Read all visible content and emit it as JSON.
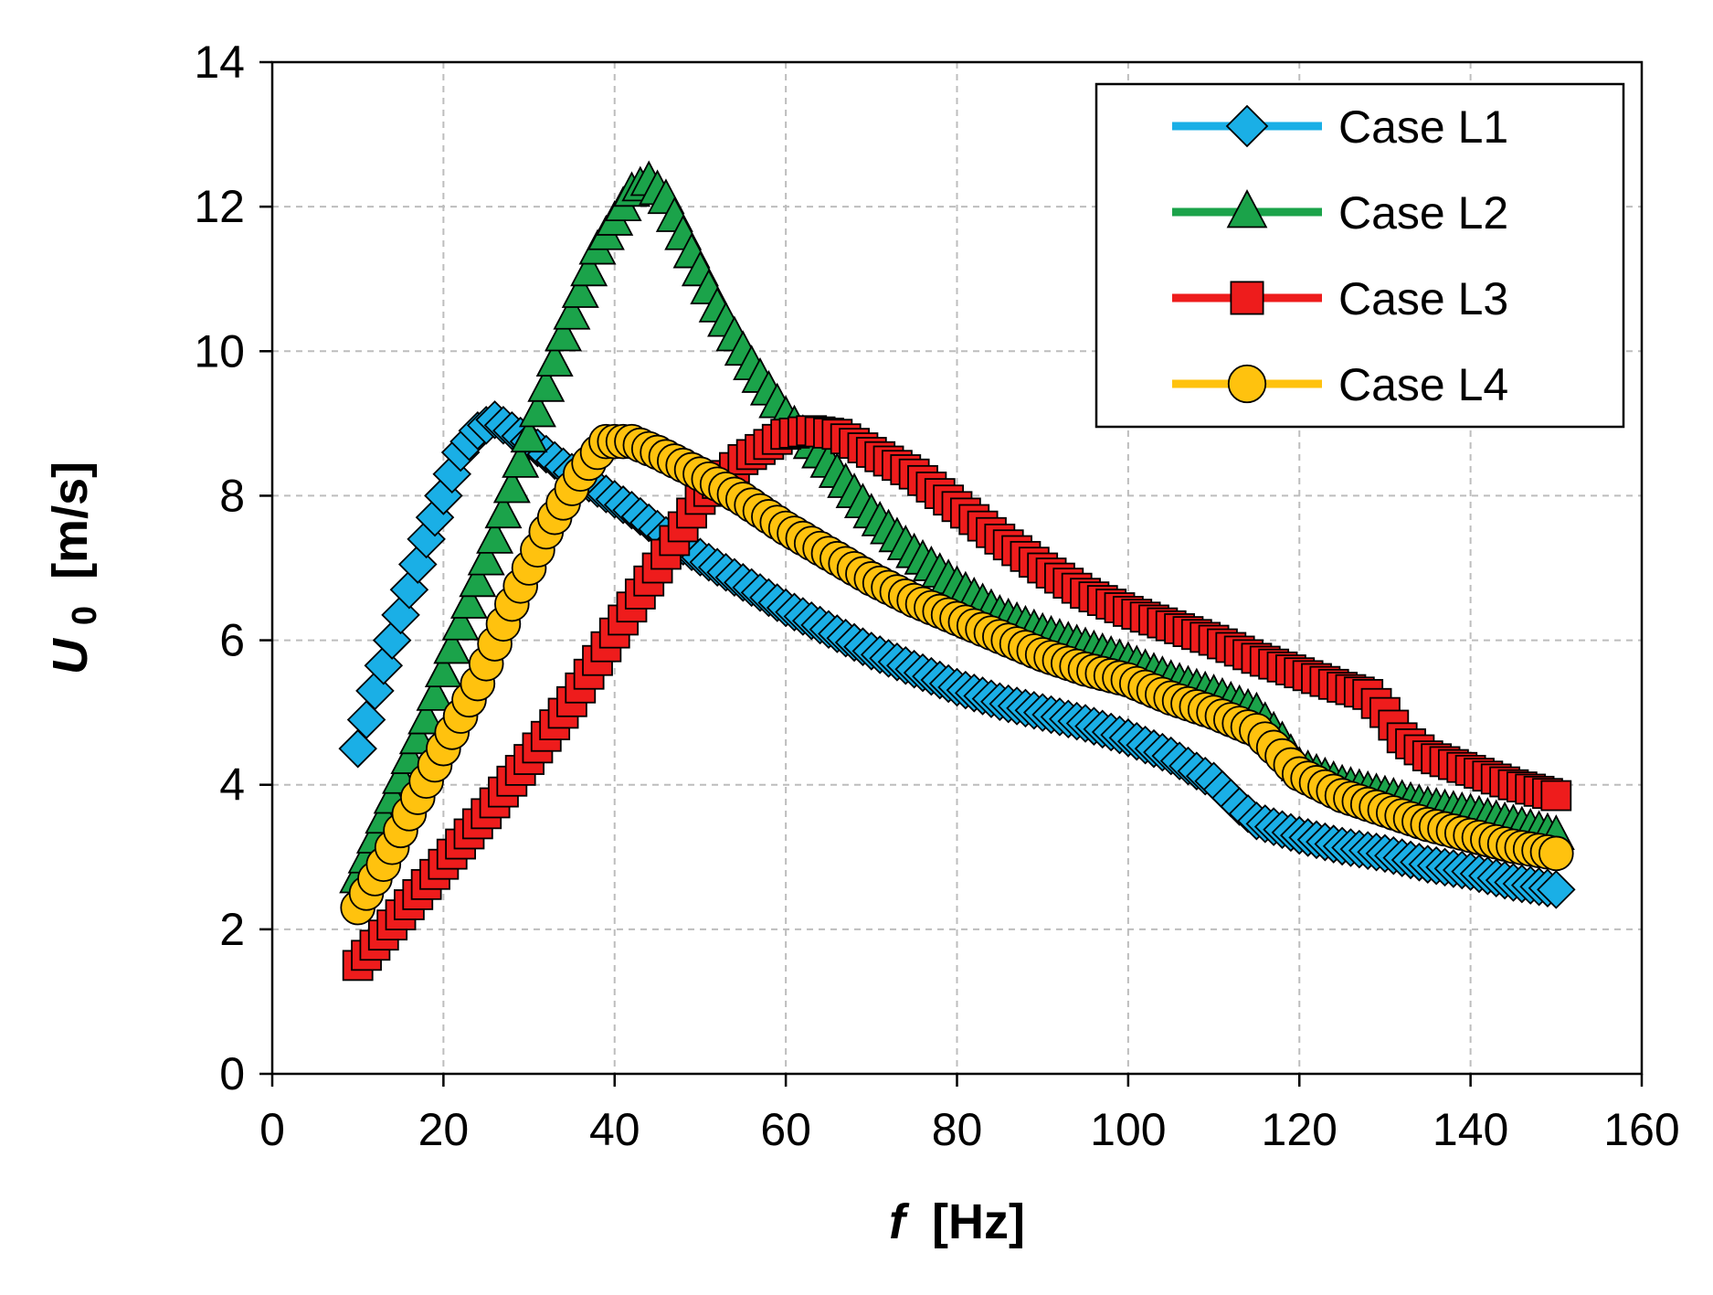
{
  "chart_data": {
    "type": "line",
    "title": "",
    "xlabel_symbol": "f",
    "xlabel_unit": "[Hz]",
    "ylabel_symbol": "U",
    "ylabel_subscript": "0",
    "ylabel_unit": "[m/s]",
    "xlim": [
      0,
      160
    ],
    "ylim": [
      0,
      14
    ],
    "xticks": [
      0,
      20,
      40,
      60,
      80,
      100,
      120,
      140,
      160
    ],
    "yticks": [
      0,
      2,
      4,
      6,
      8,
      10,
      12,
      14
    ],
    "grid": true,
    "legend_position": "top-right",
    "series": [
      {
        "name": "Case L1",
        "marker": "diamond",
        "color": "#1AAFE6",
        "anchors": [
          [
            10,
            4.5
          ],
          [
            12,
            5.3
          ],
          [
            14,
            6.0
          ],
          [
            16,
            6.7
          ],
          [
            18,
            7.4
          ],
          [
            20,
            8.0
          ],
          [
            22,
            8.6
          ],
          [
            24,
            8.9
          ],
          [
            26,
            9.05
          ],
          [
            28,
            8.9
          ],
          [
            30,
            8.75
          ],
          [
            34,
            8.4
          ],
          [
            38,
            8.1
          ],
          [
            42,
            7.8
          ],
          [
            46,
            7.45
          ],
          [
            50,
            7.15
          ],
          [
            55,
            6.8
          ],
          [
            60,
            6.45
          ],
          [
            65,
            6.15
          ],
          [
            70,
            5.85
          ],
          [
            75,
            5.6
          ],
          [
            80,
            5.35
          ],
          [
            85,
            5.15
          ],
          [
            90,
            5.0
          ],
          [
            95,
            4.85
          ],
          [
            100,
            4.65
          ],
          [
            105,
            4.4
          ],
          [
            110,
            4.05
          ],
          [
            113,
            3.7
          ],
          [
            115,
            3.5
          ],
          [
            120,
            3.3
          ],
          [
            125,
            3.15
          ],
          [
            130,
            3.05
          ],
          [
            135,
            2.9
          ],
          [
            140,
            2.8
          ],
          [
            145,
            2.65
          ],
          [
            150,
            2.55
          ]
        ]
      },
      {
        "name": "Case L2",
        "marker": "triangle",
        "color": "#1BA34A",
        "anchors": [
          [
            10,
            2.7
          ],
          [
            14,
            3.8
          ],
          [
            18,
            4.9
          ],
          [
            22,
            6.2
          ],
          [
            26,
            7.4
          ],
          [
            30,
            8.8
          ],
          [
            34,
            10.2
          ],
          [
            38,
            11.4
          ],
          [
            42,
            12.2
          ],
          [
            44,
            12.35
          ],
          [
            46,
            12.1
          ],
          [
            48,
            11.6
          ],
          [
            52,
            10.6
          ],
          [
            56,
            9.8
          ],
          [
            60,
            9.1
          ],
          [
            65,
            8.45
          ],
          [
            70,
            7.75
          ],
          [
            75,
            7.2
          ],
          [
            80,
            6.75
          ],
          [
            85,
            6.35
          ],
          [
            90,
            6.1
          ],
          [
            95,
            5.9
          ],
          [
            100,
            5.7
          ],
          [
            105,
            5.45
          ],
          [
            110,
            5.25
          ],
          [
            115,
            5.0
          ],
          [
            118,
            4.6
          ],
          [
            120,
            4.25
          ],
          [
            125,
            4.0
          ],
          [
            130,
            3.85
          ],
          [
            135,
            3.7
          ],
          [
            140,
            3.6
          ],
          [
            145,
            3.45
          ],
          [
            150,
            3.3
          ]
        ]
      },
      {
        "name": "Case L3",
        "marker": "square",
        "color": "#EE1C1C",
        "anchors": [
          [
            10,
            1.5
          ],
          [
            15,
            2.2
          ],
          [
            20,
            2.9
          ],
          [
            25,
            3.6
          ],
          [
            30,
            4.35
          ],
          [
            35,
            5.15
          ],
          [
            40,
            6.1
          ],
          [
            45,
            7.0
          ],
          [
            50,
            7.95
          ],
          [
            55,
            8.5
          ],
          [
            60,
            8.85
          ],
          [
            63,
            8.9
          ],
          [
            66,
            8.85
          ],
          [
            70,
            8.6
          ],
          [
            75,
            8.3
          ],
          [
            80,
            7.85
          ],
          [
            85,
            7.4
          ],
          [
            90,
            7.0
          ],
          [
            95,
            6.65
          ],
          [
            100,
            6.4
          ],
          [
            105,
            6.2
          ],
          [
            110,
            6.0
          ],
          [
            115,
            5.75
          ],
          [
            120,
            5.55
          ],
          [
            125,
            5.35
          ],
          [
            128,
            5.25
          ],
          [
            130,
            5.0
          ],
          [
            132,
            4.65
          ],
          [
            135,
            4.4
          ],
          [
            140,
            4.2
          ],
          [
            145,
            4.0
          ],
          [
            150,
            3.85
          ]
        ]
      },
      {
        "name": "Case L4",
        "marker": "circle",
        "color": "#FFC20E",
        "anchors": [
          [
            10,
            2.3
          ],
          [
            13,
            2.9
          ],
          [
            16,
            3.6
          ],
          [
            20,
            4.5
          ],
          [
            24,
            5.4
          ],
          [
            28,
            6.5
          ],
          [
            32,
            7.5
          ],
          [
            36,
            8.3
          ],
          [
            39,
            8.75
          ],
          [
            42,
            8.75
          ],
          [
            45,
            8.6
          ],
          [
            50,
            8.3
          ],
          [
            55,
            7.95
          ],
          [
            60,
            7.55
          ],
          [
            65,
            7.2
          ],
          [
            70,
            6.85
          ],
          [
            75,
            6.55
          ],
          [
            80,
            6.3
          ],
          [
            85,
            6.05
          ],
          [
            90,
            5.8
          ],
          [
            95,
            5.6
          ],
          [
            100,
            5.45
          ],
          [
            105,
            5.2
          ],
          [
            110,
            5.0
          ],
          [
            115,
            4.75
          ],
          [
            118,
            4.4
          ],
          [
            120,
            4.15
          ],
          [
            125,
            3.85
          ],
          [
            130,
            3.65
          ],
          [
            135,
            3.45
          ],
          [
            140,
            3.3
          ],
          [
            145,
            3.15
          ],
          [
            150,
            3.05
          ]
        ]
      }
    ]
  }
}
